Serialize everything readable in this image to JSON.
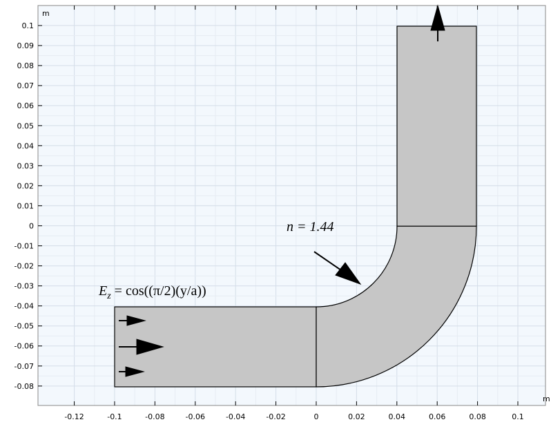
{
  "chart_data": {
    "type": "geometry",
    "x_unit": "m",
    "y_unit": "m",
    "xlim": [
      -0.138,
      0.1137
    ],
    "ylim": [
      -0.0897,
      0.11
    ],
    "xticks": [
      -0.12,
      -0.1,
      -0.08,
      -0.06,
      -0.04,
      -0.02,
      0,
      0.02,
      0.04,
      0.06,
      0.08,
      0.1
    ],
    "yticks": [
      -0.08,
      -0.07,
      -0.06,
      -0.05,
      -0.04,
      -0.03,
      -0.02,
      -0.01,
      0,
      0.01,
      0.02,
      0.03,
      0.04,
      0.05,
      0.06,
      0.07,
      0.08,
      0.09,
      0.1
    ],
    "grid": true,
    "annotations": {
      "index": "n = 1.44",
      "field": {
        "lhs": "E",
        "sub": "z",
        "rhs": " = cos((π/2)(y/a))"
      }
    }
  }
}
